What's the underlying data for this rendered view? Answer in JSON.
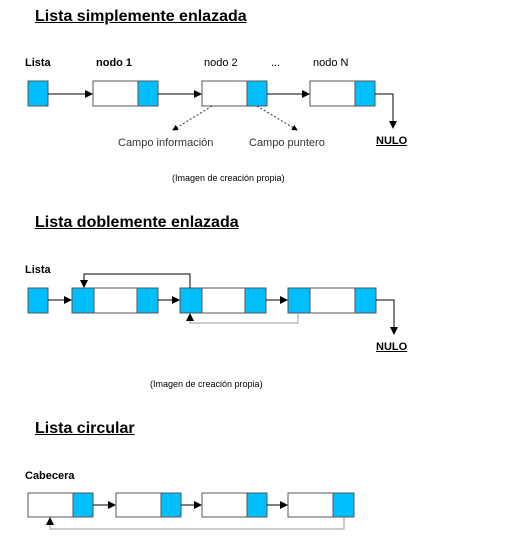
{
  "colors": {
    "cell": "#00bfff",
    "line": "#000000",
    "back_line": "#999999"
  },
  "simple": {
    "title": "Lista simplemente enlazada",
    "head_label": "Lista",
    "node_labels": [
      "nodo 1",
      "nodo 2",
      "...",
      "nodo N"
    ],
    "annotation_info": "Campo información",
    "annotation_pointer": "Campo puntero",
    "null_label": "NULO",
    "caption": "(Imagen de creación propia)"
  },
  "double": {
    "title": "Lista doblemente enlazada",
    "head_label": "Lista",
    "null_label": "NULO",
    "caption": "(Imagen de creación propia)"
  },
  "circular": {
    "title": "Lista circular",
    "head_label": "Cabecera"
  }
}
